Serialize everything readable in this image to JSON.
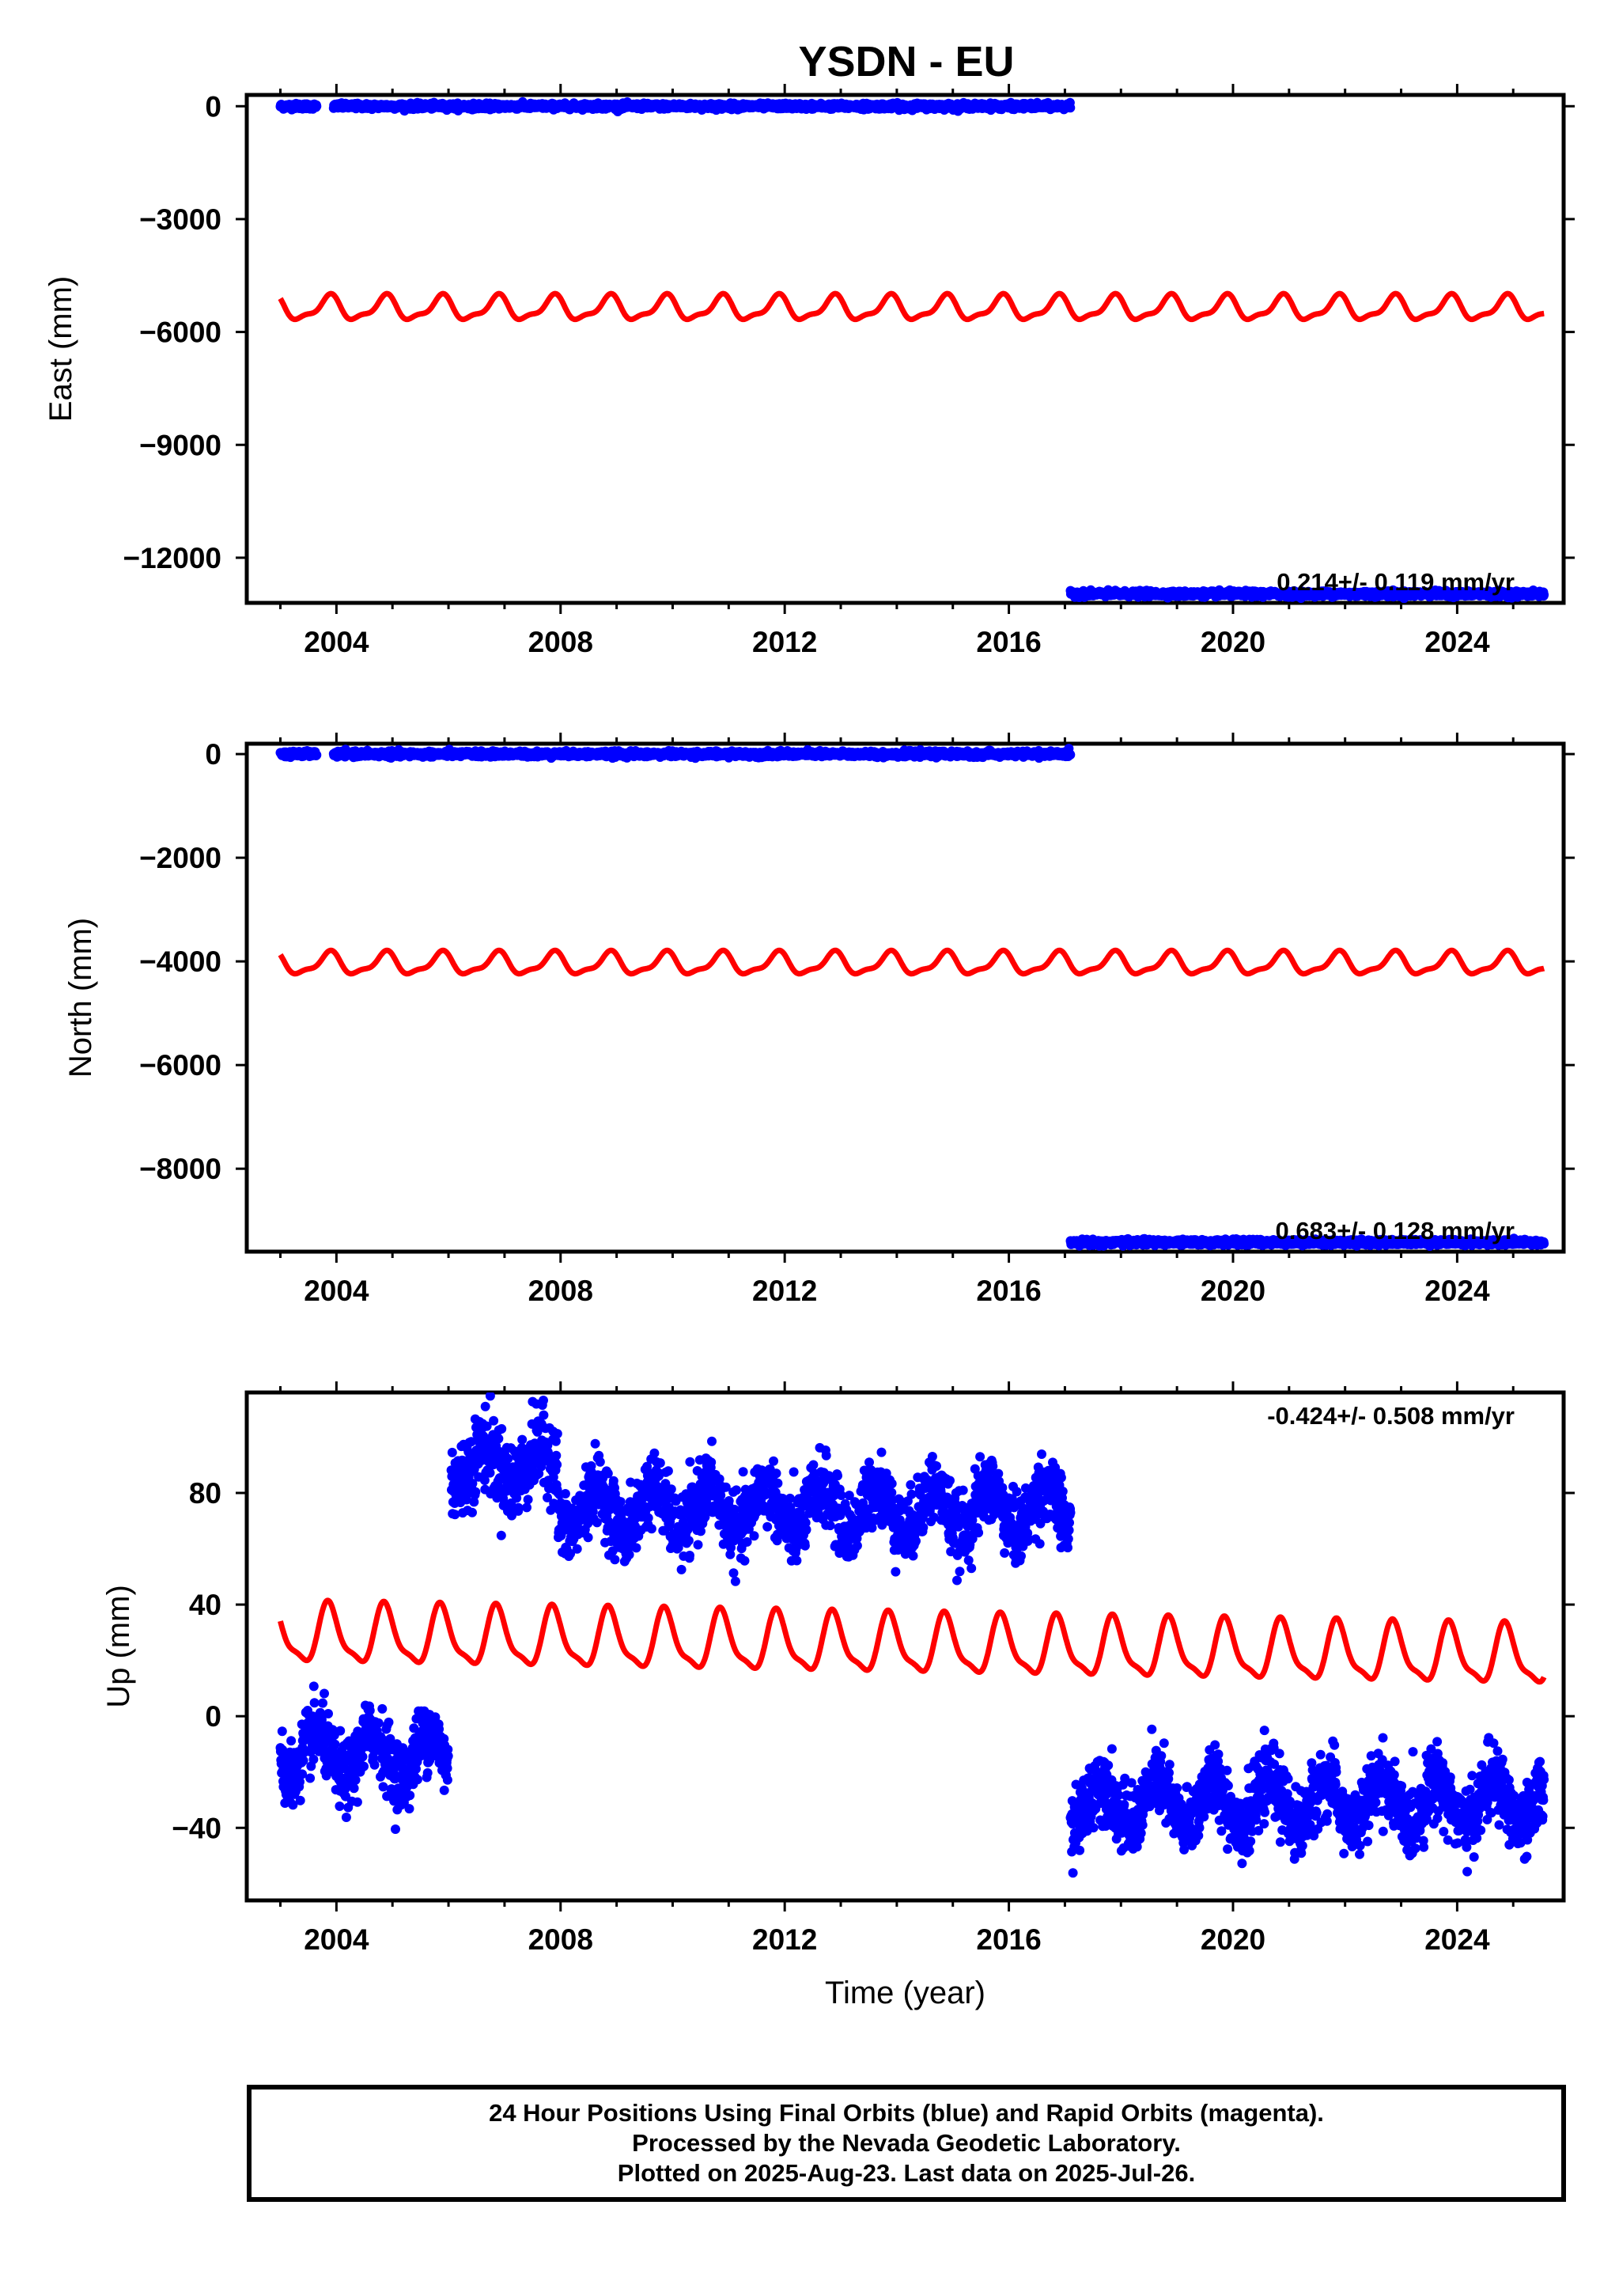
{
  "title": "YSDN - EU",
  "colors": {
    "final": "#0000ff",
    "model": "#ff0000",
    "axes": "#000000"
  },
  "footer": {
    "line1": "24 Hour Positions Using Final Orbits (blue) and Rapid Orbits (magenta).",
    "line2": "Processed by the Nevada Geodetic Laboratory.",
    "line3": "Plotted on 2025-Aug-23. Last data on 2025-Jul-26."
  },
  "chart_data": [
    {
      "type": "scatter",
      "ylabel": "East (mm)",
      "xlim": [
        2002.4,
        2025.9
      ],
      "ylim": [
        -13200,
        300
      ],
      "xticks": [
        2004,
        2008,
        2012,
        2016,
        2020,
        2024
      ],
      "xtick_labels": [
        "2004",
        "2008",
        "2012",
        "2016",
        "2020",
        "2024"
      ],
      "yticks": [
        0,
        -3000,
        -6000,
        -9000,
        -12000
      ],
      "ytick_labels": [
        "0",
        "−3000",
        "−6000",
        "−9000",
        "−12000"
      ],
      "rate": "0.214+/- 0.119 mm/yr",
      "series": [
        {
          "kind": "final",
          "color": "#0000ff",
          "segments": [
            {
              "x": [
                2003.0,
                2003.65
              ],
              "y": 0,
              "scatter": 35
            },
            {
              "x": [
                2003.95,
                2017.1
              ],
              "y": 0,
              "scatter": 35
            },
            {
              "x": [
                2017.1,
                2025.55
              ],
              "y": -12960,
              "scatter": 35
            }
          ]
        },
        {
          "kind": "model",
          "color": "#ff0000",
          "x_range": [
            2003.0,
            2025.55
          ],
          "mean": -5380,
          "trend": 0,
          "annual_amplitude": 300,
          "annual_phase": 0.62,
          "semi_amplitude": 110,
          "semi_phase": 0.3
        }
      ]
    },
    {
      "type": "scatter",
      "ylabel": "North (mm)",
      "xlim": [
        2002.4,
        2025.9
      ],
      "ylim": [
        -9600,
        200
      ],
      "xticks": [
        2004,
        2008,
        2012,
        2016,
        2020,
        2024
      ],
      "xtick_labels": [
        "2004",
        "2008",
        "2012",
        "2016",
        "2020",
        "2024"
      ],
      "yticks": [
        0,
        -2000,
        -4000,
        -6000,
        -8000
      ],
      "ytick_labels": [
        "0",
        "−2000",
        "−4000",
        "−6000",
        "−8000"
      ],
      "rate": "0.683+/- 0.128 mm/yr",
      "series": [
        {
          "kind": "final",
          "color": "#0000ff",
          "segments": [
            {
              "x": [
                2003.0,
                2003.65
              ],
              "y": 0,
              "scatter": 25
            },
            {
              "x": [
                2003.95,
                2017.1
              ],
              "y": 0,
              "scatter": 25
            },
            {
              "x": [
                2017.1,
                2025.55
              ],
              "y": -9420,
              "scatter": 25
            }
          ]
        },
        {
          "kind": "model",
          "color": "#ff0000",
          "x_range": [
            2003.0,
            2025.55
          ],
          "mean": -4050,
          "trend": 0,
          "annual_amplitude": 200,
          "annual_phase": 0.62,
          "semi_amplitude": 70,
          "semi_phase": 0.3
        }
      ]
    },
    {
      "type": "scatter",
      "ylabel": "Up (mm)",
      "xlabel": "Time (year)",
      "xlim": [
        2002.4,
        2025.9
      ],
      "ylim": [
        -66,
        116
      ],
      "xticks": [
        2004,
        2008,
        2012,
        2016,
        2020,
        2024
      ],
      "xtick_labels": [
        "2004",
        "2008",
        "2012",
        "2016",
        "2020",
        "2024"
      ],
      "yticks": [
        80,
        40,
        0,
        -40
      ],
      "ytick_labels": [
        "80",
        "40",
        "0",
        "−40"
      ],
      "rate": "-0.424+/- 0.508 mm/yr",
      "series": [
        {
          "kind": "final",
          "color": "#0000ff",
          "segments": [
            {
              "x": [
                2003.0,
                2006.0
              ],
              "mean": -14,
              "annual_amplitude": 8,
              "noise": 6
            },
            {
              "x": [
                2006.05,
                2007.95
              ],
              "mean": 90,
              "annual_amplitude": 6,
              "noise": 7
            },
            {
              "x": [
                2007.95,
                2017.1
              ],
              "mean": 74,
              "annual_amplitude": 8,
              "noise": 6
            },
            {
              "x": [
                2017.1,
                2025.55
              ],
              "mean": -31,
              "annual_amplitude": 8,
              "noise": 6
            }
          ]
        },
        {
          "kind": "model",
          "color": "#ff0000",
          "x_range": [
            2003.0,
            2025.55
          ],
          "mean": 29,
          "trend": -0.35,
          "annual_amplitude": 10,
          "annual_phase": 0.62,
          "semi_amplitude": 3,
          "semi_phase": 0.2
        }
      ]
    }
  ]
}
